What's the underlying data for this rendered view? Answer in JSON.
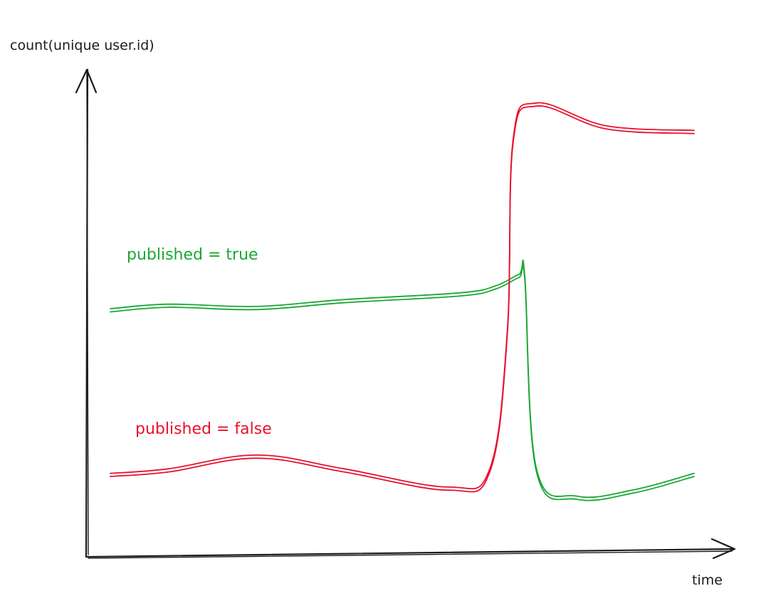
{
  "chart_data": {
    "type": "line",
    "title": "",
    "xlabel": "time",
    "ylabel": "count(unique user.id)",
    "grid": false,
    "legend": "inline",
    "series": [
      {
        "name": "published = true",
        "color": "#1aa833",
        "x": [
          0.0,
          0.1,
          0.25,
          0.4,
          0.6,
          0.66,
          0.7,
          0.71,
          0.73,
          0.8,
          0.9,
          1.0
        ],
        "y": [
          0.55,
          0.56,
          0.555,
          0.57,
          0.585,
          0.6,
          0.625,
          0.62,
          0.2,
          0.14,
          0.155,
          0.19
        ]
      },
      {
        "name": "published = false",
        "color": "#e8112d",
        "x": [
          0.0,
          0.1,
          0.25,
          0.4,
          0.58,
          0.65,
          0.68,
          0.69,
          0.73,
          0.85,
          1.0
        ],
        "y": [
          0.19,
          0.2,
          0.23,
          0.2,
          0.16,
          0.2,
          0.5,
          0.92,
          1.0,
          0.95,
          0.94
        ]
      }
    ]
  }
}
